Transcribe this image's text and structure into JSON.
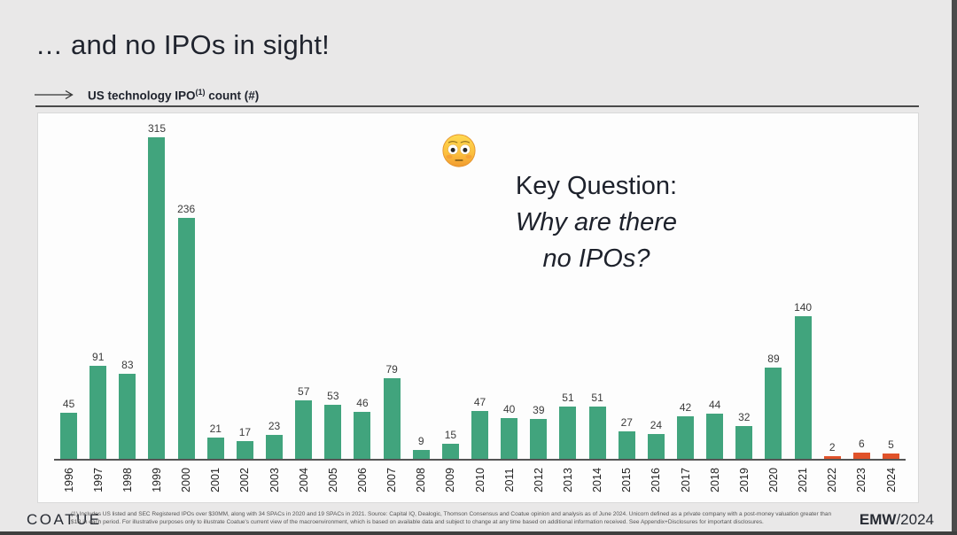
{
  "slide": {
    "title": "… and no IPOs in sight!",
    "subtitle_text": "US technology IPO",
    "subtitle_superscript": "(1)",
    "subtitle_suffix": " count (#)"
  },
  "key_question": {
    "emoji_name": "flushed-face-emoji",
    "line1": "Key Question:",
    "line2": "Why are there",
    "line3": "no IPOs?"
  },
  "chart_data": {
    "type": "bar",
    "title": "US technology IPO(1) count (#)",
    "categories": [
      "1996",
      "1997",
      "1998",
      "1999",
      "2000",
      "2001",
      "2002",
      "2003",
      "2004",
      "2005",
      "2006",
      "2007",
      "2008",
      "2009",
      "2010",
      "2011",
      "2012",
      "2013",
      "2014",
      "2015",
      "2016",
      "2017",
      "2018",
      "2019",
      "2020",
      "2021",
      "2022",
      "2023",
      "2024"
    ],
    "values": [
      45,
      91,
      83,
      315,
      236,
      21,
      17,
      23,
      57,
      53,
      46,
      79,
      9,
      15,
      47,
      40,
      39,
      51,
      51,
      27,
      24,
      42,
      44,
      32,
      89,
      140,
      2,
      6,
      5
    ],
    "value_labels_shown": true,
    "highlight_last_n": 3,
    "highlight_categories": [
      "2022",
      "2023",
      "2024"
    ],
    "xlabel": "",
    "ylabel": "IPO count (#)",
    "ylim": [
      0,
      340
    ],
    "grid": false,
    "legend": "none"
  },
  "colors": {
    "bar_default": "#41a47d",
    "bar_highlight": "#e0522a",
    "background": "#e9e8e8",
    "panel": "#fdfdfd",
    "title_text": "#20242e",
    "axis_line": "#555555"
  },
  "footer": {
    "logo": "COATUE",
    "disclaimer_line1": "(1) Includes US listed and SEC Registered IPOs over $30MM, along with 34 SPACs in 2020 and 19 SPACs in 2021. Source: Capital IQ, Dealogic, Thomson Consensus and Coatue opinion and analysis as of June 2024. Unicorn defined as a private company with a post-money valuation greater than",
    "disclaimer_line2": "$1B in each period. For illustrative purposes only to illustrate Coatue's current view of the macroenvironment, which is based on available data and subject to change at any time based on additional information received. See Appendix+Disclosures for important disclosures.",
    "stamp_bold": "EMW",
    "stamp_rest": "/2024"
  }
}
